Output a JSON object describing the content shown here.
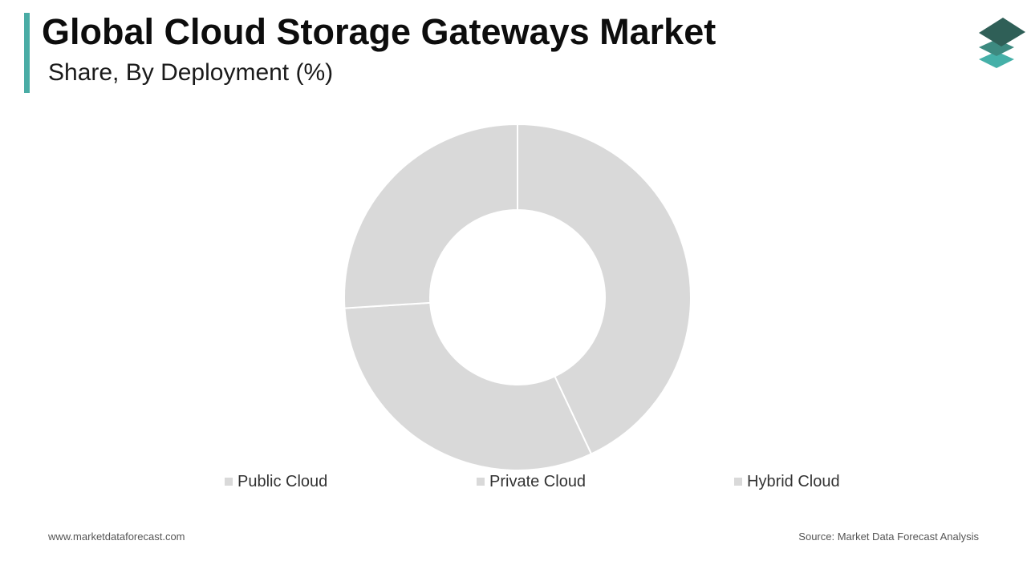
{
  "title": "Global Cloud Storage Gateways Market",
  "subtitle": "Share, By Deployment (%)",
  "footer": {
    "website": "www.marketdataforecast.com",
    "source": "Source: Market Data Forecast Analysis"
  },
  "colors": {
    "accent": "#4aaca5",
    "slice": "#d9d9d9",
    "logo_dark": "#2f5f57",
    "logo_mid": "#3d8a80",
    "logo_light": "#45b0a8"
  },
  "chart_data": {
    "type": "pie",
    "variant": "donut",
    "categories": [
      "Public Cloud",
      "Private Cloud",
      "Hybrid Cloud"
    ],
    "values": [
      43,
      31,
      26
    ],
    "legend_position": "bottom",
    "data_labels": false
  }
}
